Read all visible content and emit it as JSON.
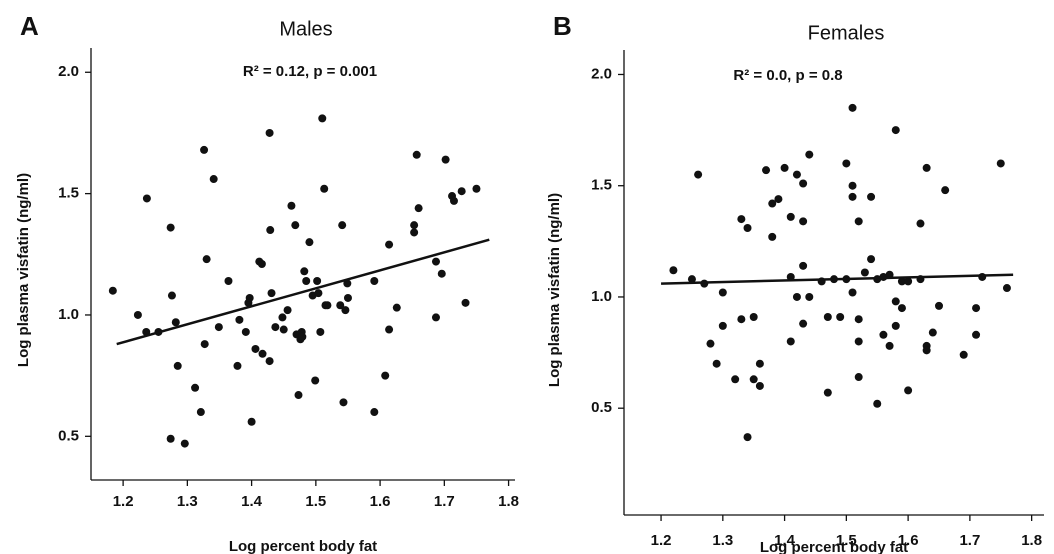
{
  "chart_data": [
    {
      "type": "scatter",
      "panel": "A",
      "title": "Males",
      "annotation": "R² = 0.12, p = 0.001",
      "xlabel": "Log percent body fat",
      "ylabel": "Log plasma visfatin (ng/ml)",
      "xlim": [
        1.15,
        1.81
      ],
      "ylim": [
        0.32,
        2.1
      ],
      "xticks": [
        1.2,
        1.3,
        1.4,
        1.5,
        1.6,
        1.7,
        1.8
      ],
      "yticks": [
        0.5,
        {
          "value": 1,
          "label": "1.0"
        },
        1.5,
        {
          "value": 2,
          "label": "2.0"
        }
      ],
      "color": "#111111",
      "x": [
        1.184,
        1.223,
        1.237,
        1.236,
        1.255,
        1.274,
        1.276,
        1.282,
        1.274,
        1.296,
        1.285,
        1.312,
        1.321,
        1.326,
        1.327,
        1.33,
        1.341,
        1.349,
        1.364,
        1.378,
        1.381,
        1.391,
        1.395,
        1.397,
        1.4,
        1.406,
        1.412,
        1.416,
        1.417,
        1.428,
        1.428,
        1.429,
        1.431,
        1.437,
        1.448,
        1.45,
        1.456,
        1.462,
        1.468,
        1.47,
        1.473,
        1.476,
        1.478,
        1.479,
        1.482,
        1.485,
        1.49,
        1.495,
        1.499,
        1.502,
        1.504,
        1.507,
        1.51,
        1.513,
        1.515,
        1.518,
        1.538,
        1.541,
        1.543,
        1.549,
        1.546,
        1.55,
        1.591,
        1.591,
        1.608,
        1.614,
        1.614,
        1.626,
        1.653,
        1.653,
        1.657,
        1.66,
        1.687,
        1.687,
        1.696,
        1.702,
        1.712,
        1.715,
        1.727,
        1.733,
        1.75
      ],
      "y": [
        1.1,
        1.0,
        1.48,
        0.93,
        0.93,
        1.36,
        1.08,
        0.97,
        0.49,
        0.47,
        0.79,
        0.7,
        0.6,
        1.68,
        0.88,
        1.23,
        1.56,
        0.95,
        1.14,
        0.79,
        0.98,
        0.93,
        1.05,
        1.07,
        0.56,
        0.86,
        1.22,
        1.21,
        0.84,
        0.81,
        1.75,
        1.35,
        1.09,
        0.95,
        0.99,
        0.94,
        1.02,
        1.45,
        1.37,
        0.92,
        0.67,
        0.9,
        0.93,
        0.91,
        1.18,
        1.14,
        1.3,
        1.08,
        0.73,
        1.14,
        1.09,
        0.93,
        1.81,
        1.52,
        1.04,
        1.04,
        1.04,
        1.37,
        0.64,
        1.13,
        1.02,
        1.07,
        1.14,
        0.6,
        0.75,
        1.29,
        0.94,
        1.03,
        1.34,
        1.37,
        1.66,
        1.44,
        0.99,
        1.22,
        1.17,
        1.64,
        1.49,
        1.47,
        1.51,
        1.05,
        1.52
      ],
      "fit": {
        "x": [
          1.19,
          1.77
        ],
        "y": [
          0.88,
          1.31
        ]
      }
    },
    {
      "type": "scatter",
      "panel": "B",
      "title": "Females",
      "annotation": "R² = 0.0, p = 0.8",
      "xlabel": "Log percent body fat",
      "ylabel": "Log plasma visfatin (ng/ml)",
      "xlim": [
        1.14,
        1.82
      ],
      "ylim": [
        0.02,
        2.11
      ],
      "xticks": [
        1.2,
        1.3,
        1.4,
        1.5,
        1.6,
        1.7,
        1.8
      ],
      "yticks": [
        0.5,
        {
          "value": 1,
          "label": "1.0"
        },
        1.5,
        {
          "value": 2,
          "label": "2.0"
        }
      ],
      "color": "#111111",
      "x": [
        1.22,
        1.25,
        1.26,
        1.27,
        1.28,
        1.29,
        1.3,
        1.3,
        1.32,
        1.33,
        1.33,
        1.34,
        1.34,
        1.35,
        1.35,
        1.36,
        1.36,
        1.37,
        1.38,
        1.38,
        1.39,
        1.4,
        1.41,
        1.41,
        1.41,
        1.42,
        1.42,
        1.43,
        1.43,
        1.43,
        1.43,
        1.44,
        1.44,
        1.46,
        1.47,
        1.47,
        1.48,
        1.49,
        1.5,
        1.5,
        1.51,
        1.51,
        1.51,
        1.51,
        1.52,
        1.52,
        1.52,
        1.52,
        1.53,
        1.54,
        1.54,
        1.55,
        1.55,
        1.56,
        1.56,
        1.57,
        1.57,
        1.58,
        1.58,
        1.58,
        1.59,
        1.59,
        1.6,
        1.6,
        1.62,
        1.62,
        1.63,
        1.63,
        1.63,
        1.64,
        1.65,
        1.66,
        1.69,
        1.71,
        1.71,
        1.72,
        1.75,
        1.76
      ],
      "y": [
        1.12,
        1.08,
        1.55,
        1.06,
        0.79,
        0.7,
        1.02,
        0.87,
        0.63,
        1.35,
        0.9,
        0.37,
        1.31,
        0.91,
        0.63,
        0.6,
        0.7,
        1.57,
        1.42,
        1.27,
        1.44,
        1.58,
        1.36,
        1.09,
        0.8,
        1.0,
        1.55,
        1.34,
        1.51,
        1.14,
        0.88,
        1.64,
        1.0,
        1.07,
        0.57,
        0.91,
        1.08,
        0.91,
        1.6,
        1.08,
        1.85,
        1.45,
        1.5,
        1.02,
        0.8,
        0.64,
        1.34,
        0.9,
        1.11,
        1.45,
        1.17,
        1.08,
        0.52,
        0.83,
        1.09,
        1.1,
        0.78,
        1.75,
        0.98,
        0.87,
        0.95,
        1.07,
        0.58,
        1.07,
        1.33,
        1.08,
        1.58,
        0.78,
        0.76,
        0.84,
        0.96,
        1.48,
        0.74,
        0.83,
        0.95,
        1.09,
        1.6,
        1.04
      ],
      "fit": {
        "x": [
          1.2,
          1.77
        ],
        "y": [
          1.06,
          1.1
        ]
      }
    }
  ]
}
